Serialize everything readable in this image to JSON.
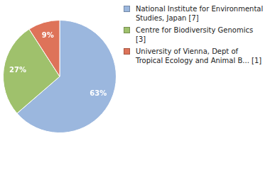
{
  "chart_data": {
    "type": "pie",
    "categories": [
      "National Institute for Environmental Studies, Japan [7]",
      "Centre for Biodiversity Genomics [3]",
      "University of Vienna, Dept of Tropical Ecology and Animal B... [1]"
    ],
    "values": [
      63,
      27,
      9
    ],
    "value_labels": [
      "63%",
      "27%",
      "9%"
    ],
    "colors": [
      "#9bb7de",
      "#9fc16c",
      "#de7359"
    ],
    "data_labels": true,
    "legend": "right"
  }
}
